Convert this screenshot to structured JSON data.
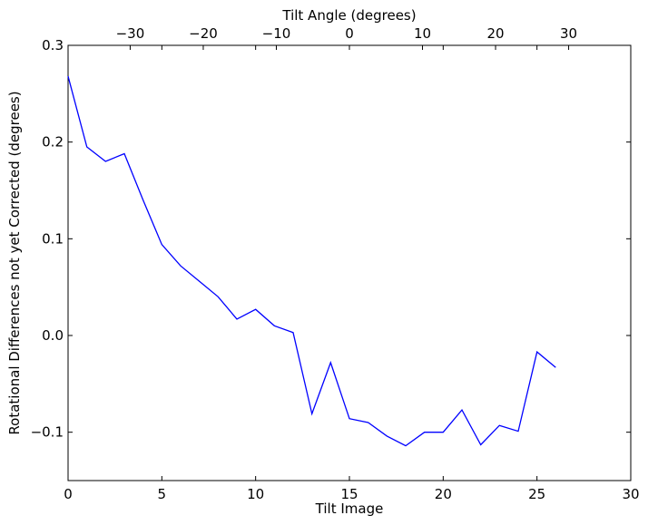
{
  "chart_data": {
    "type": "line",
    "xlabel": "Tilt Image",
    "x2label": "Tilt Angle (degrees)",
    "ylabel": "Rotational Differences not yet Corrected (degrees)",
    "xlim": [
      0,
      30
    ],
    "ylim": [
      -0.15,
      0.3
    ],
    "x2lim": [
      -38.5,
      38.5
    ],
    "grid": false,
    "line_color": "#0000ff",
    "x_ticks": [
      0,
      5,
      10,
      15,
      20,
      25,
      30
    ],
    "x_tick_labels": [
      "0",
      "5",
      "10",
      "15",
      "20",
      "25",
      "30"
    ],
    "y_ticks": [
      -0.1,
      0.0,
      0.1,
      0.2,
      0.3
    ],
    "y_tick_labels": [
      "−0.1",
      "0.0",
      "0.1",
      "0.2",
      "0.3"
    ],
    "x2_ticks": [
      -30,
      -20,
      -10,
      0,
      10,
      20,
      30
    ],
    "x2_tick_labels": [
      "−30",
      "−20",
      "−10",
      "0",
      "10",
      "20",
      "30"
    ],
    "series": [
      {
        "x": [
          0,
          1,
          2,
          3,
          4,
          5,
          6,
          7,
          8,
          9,
          10,
          11,
          12,
          13,
          14,
          15,
          16,
          17,
          18,
          19,
          20,
          21,
          22,
          23,
          24,
          25,
          26
        ],
        "y": [
          0.268,
          0.195,
          0.18,
          0.188,
          0.14,
          0.094,
          0.072,
          0.056,
          0.04,
          0.017,
          0.027,
          0.01,
          0.003,
          -0.081,
          -0.028,
          -0.086,
          -0.09,
          -0.104,
          -0.114,
          -0.1,
          -0.1,
          -0.077,
          -0.113,
          -0.093,
          -0.099,
          -0.017,
          -0.033
        ]
      }
    ]
  }
}
